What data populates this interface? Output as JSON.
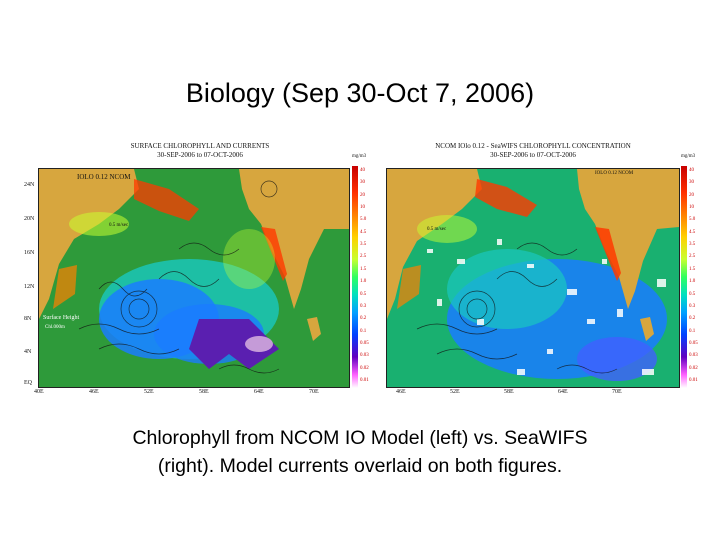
{
  "title": "Biology (Sep 30-Oct 7, 2006)",
  "caption_line1": "Chlorophyll from NCOM IO Model (left) vs. SeaWIFS",
  "caption_line2": "(right). Model currents overlaid on both figures.",
  "left_panel": {
    "heading1": "SURFACE CHLOROPHYLL AND CURRENTS",
    "heading2": "30-SEP-2006 to 07-OCT-2006",
    "map_label": "IOLO 0.12 NCOM",
    "scale_label": "0.5 m/sec",
    "inset_label1": "Surface Height",
    "inset_label2": "Chl.000m",
    "unit": "mg/m3"
  },
  "right_panel": {
    "heading1": "NCOM IOlo 0.12 - SeaWIFS CHLOROPHYLL CONCENTRATION",
    "heading2": "30-SEP-2006 to 07-OCT-2006",
    "map_label": "IOLO 0.12 NCOM",
    "scale_label": "0.5 m/sec",
    "unit": "mg/m3"
  },
  "colorbar_ticks": [
    "40",
    "30",
    "20",
    "10",
    "5.0",
    "4.5",
    "3.5",
    "2.5",
    "1.5",
    "1.0",
    "0.5",
    "0.3",
    "0.2",
    "0.1",
    "0.05",
    "0.03",
    "0.02",
    "0.01"
  ],
  "lat_labels": [
    "24N",
    "20N",
    "16N",
    "12N",
    "8N",
    "4N",
    "EQ"
  ],
  "lon_labels_left": [
    "40E",
    "46E",
    "52E",
    "58E",
    "64E",
    "70E"
  ],
  "lon_labels_right": [
    "46E",
    "52E",
    "58E",
    "64E",
    "70E"
  ],
  "colors": {
    "land": "#d7a63e",
    "ocean_mid": "#2e9a3a",
    "coastal_high": "#ff3a00",
    "open_low": "#1a7cff",
    "very_low": "#5a1fb0"
  }
}
